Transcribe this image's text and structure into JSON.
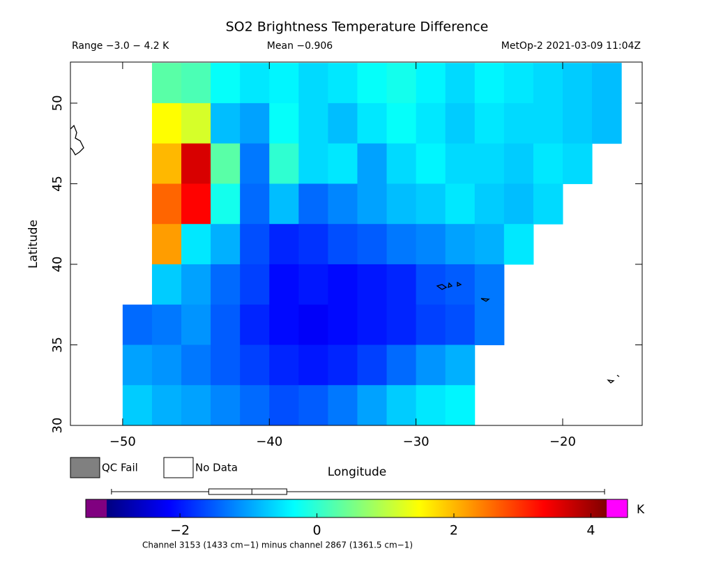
{
  "chart_data": {
    "type": "heatmap-map",
    "title": "SO2 Brightness Temperature Difference",
    "subtitle_left": "Range −3.0 − 4.2 K",
    "subtitle_center": "Mean −0.906",
    "subtitle_right": "MetOp-2 2021-03-09 11:04Z",
    "x_label": "Longitude",
    "y_label": "Latitude",
    "xlim": [
      -53.56,
      -14.58
    ],
    "ylim": [
      30,
      52.55
    ],
    "xticks": [
      {
        "value": -50,
        "label": "−50"
      },
      {
        "value": -40,
        "label": "−40"
      },
      {
        "value": -30,
        "label": "−30"
      },
      {
        "value": -20,
        "label": "−20"
      }
    ],
    "yticks": [
      30,
      35,
      40,
      45,
      50
    ],
    "lon_edges": [
      -54,
      -52,
      -50,
      -48,
      -46,
      -44,
      -42,
      -40,
      -38,
      -36,
      -34,
      -32,
      -30,
      -28,
      -26,
      -24,
      -22,
      -20,
      -18,
      -16,
      -14
    ],
    "lat_edges": [
      52.5,
      50,
      47.5,
      45,
      42.5,
      40,
      37.5,
      35,
      32.5,
      30
    ],
    "values": [
      [
        null,
        null,
        null,
        0.3,
        0.2,
        -0.3,
        -0.5,
        -0.4,
        -0.6,
        -0.5,
        -0.3,
        -0.2,
        -0.4,
        -0.6,
        -0.4,
        -0.5,
        -0.6,
        -0.7,
        -0.8,
        null
      ],
      [
        null,
        null,
        null,
        1.5,
        1.2,
        -0.8,
        -1.0,
        -0.3,
        -0.6,
        -0.8,
        -0.5,
        -0.3,
        -0.5,
        -0.7,
        -0.5,
        -0.6,
        -0.6,
        -0.7,
        -0.8,
        null
      ],
      [
        null,
        null,
        null,
        2.0,
        3.6,
        0.3,
        -1.3,
        0.0,
        -0.6,
        -0.5,
        -1.0,
        -0.6,
        -0.4,
        -0.6,
        -0.6,
        -0.7,
        -0.5,
        -0.6,
        null,
        null
      ],
      [
        null,
        null,
        null,
        2.6,
        3.3,
        -0.2,
        -1.4,
        -0.8,
        -1.4,
        -1.2,
        -1.0,
        -0.8,
        -0.7,
        -0.5,
        -0.7,
        -0.8,
        -0.6,
        null,
        null,
        null
      ],
      [
        null,
        null,
        null,
        2.2,
        -0.5,
        -0.9,
        -1.6,
        -1.9,
        -1.8,
        -1.6,
        -1.5,
        -1.3,
        -1.2,
        -1.0,
        -0.9,
        -0.5,
        null,
        null,
        null,
        null
      ],
      [
        null,
        null,
        null,
        -0.7,
        -1.0,
        -1.4,
        -1.7,
        -2.1,
        -2.0,
        -2.1,
        -2.0,
        -1.9,
        -1.6,
        -1.5,
        -1.3,
        null,
        null,
        null,
        null,
        null
      ],
      [
        null,
        null,
        -1.4,
        -1.3,
        -1.1,
        -1.5,
        -1.9,
        -2.1,
        -2.2,
        -2.1,
        -2.0,
        -1.9,
        -1.7,
        -1.6,
        -1.3,
        null,
        null,
        null,
        null,
        null
      ],
      [
        null,
        null,
        -1.0,
        -1.1,
        -1.3,
        -1.5,
        -1.7,
        -1.9,
        -2.0,
        -1.9,
        -1.7,
        -1.4,
        -1.1,
        -0.9,
        null,
        null,
        null,
        null,
        null,
        null
      ],
      [
        null,
        null,
        -0.7,
        -0.9,
        -1.0,
        -1.2,
        -1.4,
        -1.6,
        -1.5,
        -1.3,
        -1.0,
        -0.7,
        -0.5,
        -0.4,
        null,
        null,
        null,
        null,
        null,
        null
      ]
    ],
    "colormap": [
      "#000080",
      "#0000ff",
      "#0080ff",
      "#00ffff",
      "#80ff80",
      "#ffff00",
      "#ff8000",
      "#ff0000",
      "#800000"
    ],
    "under_color": "#800080",
    "over_color": "#ff00ff",
    "clim": [
      -3.07,
      4.23
    ],
    "cticks": [
      {
        "value": -2,
        "label": "−2"
      },
      0,
      2,
      4
    ],
    "colorbar_unit": "K",
    "boxplot": {
      "min": -3.0,
      "q1": -1.58,
      "median": -0.95,
      "q3": -0.44,
      "max": 4.2
    },
    "legend": [
      {
        "label": "QC Fail",
        "color": "#808080"
      },
      {
        "label": "No Data",
        "color": "#ffffff"
      }
    ],
    "footnote": "Channel 3153 (1433 cm−1) minus channel 2867 (1361.5 cm−1)"
  }
}
